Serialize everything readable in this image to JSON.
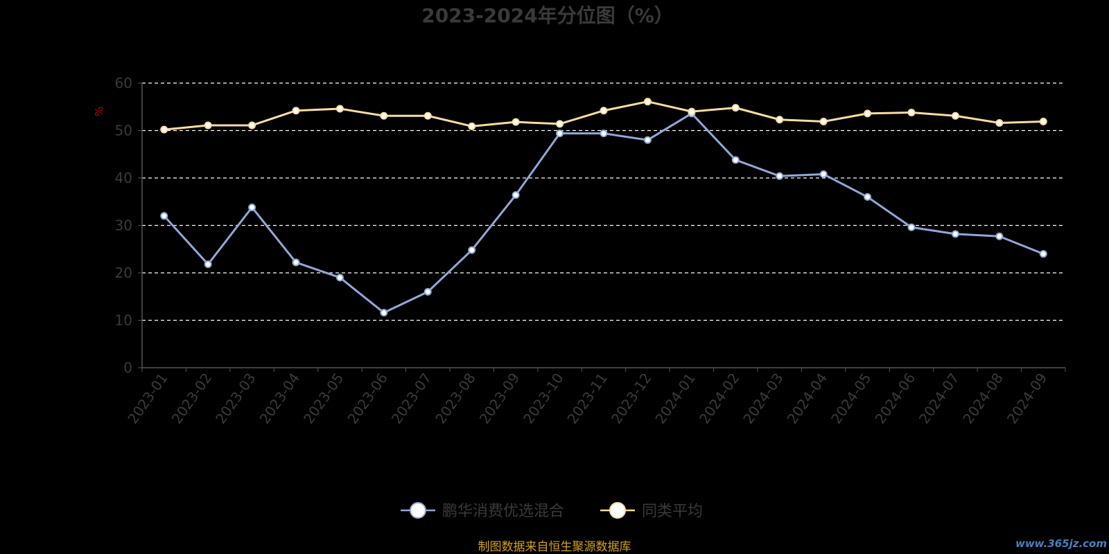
{
  "chart_data": {
    "type": "line",
    "title": "2023-2024年分位图（%）",
    "ylabel": "%",
    "xlabel": "",
    "ylim": [
      0,
      60
    ],
    "yticks": [
      0,
      10,
      20,
      30,
      40,
      50,
      60
    ],
    "grid": true,
    "legend_position": "bottom-center",
    "categories": [
      "2023-01",
      "2023-02",
      "2023-03",
      "2023-04",
      "2023-05",
      "2023-06",
      "2023-07",
      "2023-08",
      "2023-09",
      "2023-10",
      "2023-11",
      "2023-12",
      "2024-01",
      "2024-02",
      "2024-03",
      "2024-04",
      "2024-05",
      "2024-06",
      "2024-07",
      "2024-08",
      "2024-09"
    ],
    "series": [
      {
        "name": "鹏华消费优选混合",
        "color": "#8fa9d8",
        "values": [
          32.0,
          21.8,
          33.8,
          22.2,
          19.0,
          11.6,
          16.0,
          24.8,
          36.4,
          49.4,
          49.4,
          48.0,
          53.6,
          43.8,
          40.4,
          40.8,
          36.0,
          29.6,
          28.2,
          27.7,
          24.0
        ]
      },
      {
        "name": "同类平均",
        "color": "#fddca0",
        "values": [
          50.2,
          51.1,
          51.1,
          54.2,
          54.6,
          53.1,
          53.1,
          50.9,
          51.8,
          51.4,
          54.2,
          56.1,
          54.0,
          54.8,
          52.3,
          51.9,
          53.6,
          53.8,
          53.1,
          51.6,
          51.9
        ]
      }
    ]
  },
  "footer": {
    "source": "制图数据来自恒生聚源数据库",
    "watermark": "www.365jz.com"
  }
}
